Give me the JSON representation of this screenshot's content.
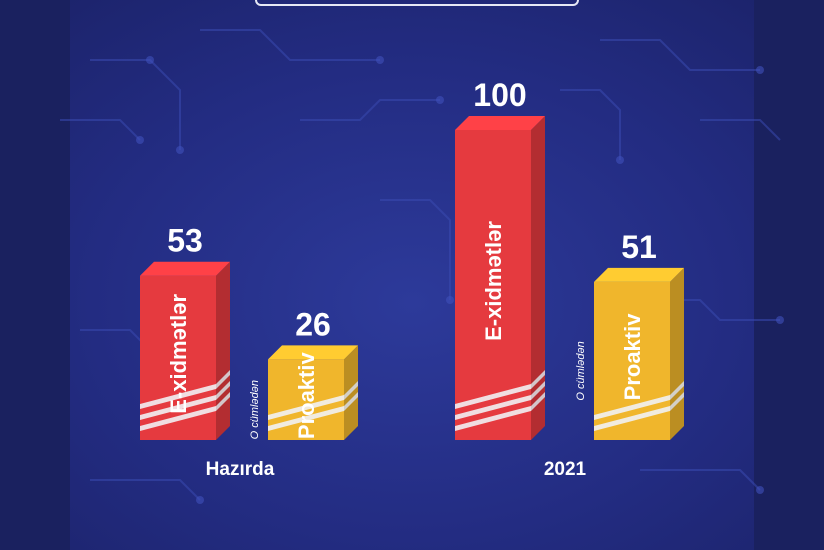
{
  "chart_data": {
    "type": "bar",
    "categories": [
      "Hazırda",
      "2021"
    ],
    "series": [
      {
        "name": "E-xidmətlər",
        "values": [
          53,
          100
        ],
        "color": "#e53a3f"
      },
      {
        "name": "Proaktiv",
        "values": [
          26,
          51
        ],
        "color": "#f0b62c"
      }
    ],
    "annotation": "O cümlədən",
    "ylim": [
      0,
      100
    ],
    "grid": false,
    "value_labels": true
  },
  "colors": {
    "background": "#222b7d",
    "red": "#e53a3f",
    "yellow": "#f0b62c"
  }
}
